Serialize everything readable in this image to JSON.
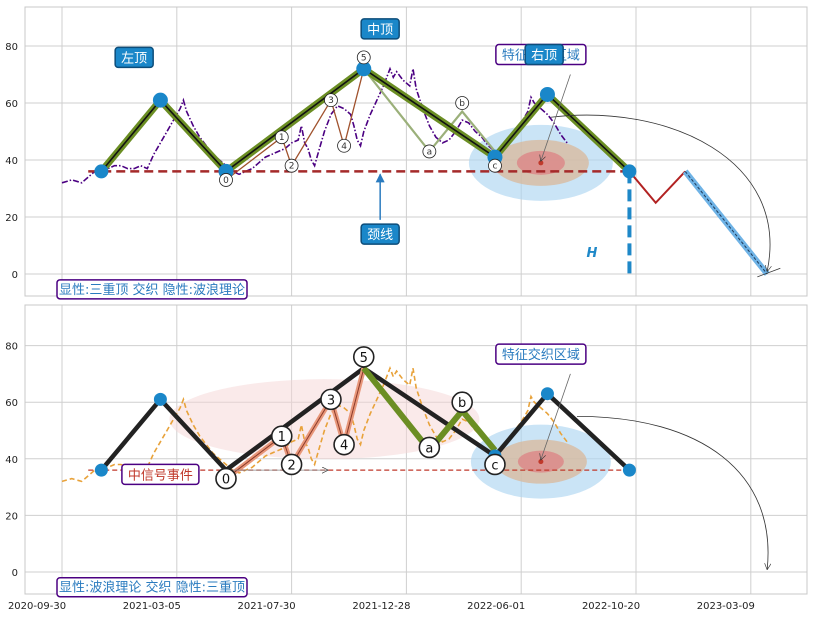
{
  "chart_data": [
    {
      "type": "line",
      "panel": "top",
      "title": "",
      "xlabel": "",
      "ylabel": "",
      "ylim": [
        -8,
        95
      ],
      "yticks": [
        0,
        20,
        40,
        60,
        80
      ],
      "grid": true,
      "series": [
        {
          "role": "price",
          "style": "dash-dot",
          "color": "#4b0082",
          "points": [
            [
              0,
              32
            ],
            [
              3,
              33
            ],
            [
              6,
              32
            ],
            [
              8,
              34
            ],
            [
              10,
              36
            ],
            [
              12,
              35
            ],
            [
              14,
              37
            ],
            [
              16,
              38
            ],
            [
              18,
              38
            ],
            [
              20,
              37
            ],
            [
              22,
              37
            ],
            [
              24,
              38
            ],
            [
              26,
              37
            ],
            [
              28,
              42
            ],
            [
              30,
              46
            ],
            [
              32,
              50
            ],
            [
              34,
              54
            ],
            [
              36,
              58
            ],
            [
              37,
              61
            ],
            [
              38,
              57
            ],
            [
              40,
              52
            ],
            [
              42,
              48
            ],
            [
              44,
              45
            ],
            [
              46,
              42
            ],
            [
              48,
              40
            ],
            [
              50,
              38
            ],
            [
              52,
              36
            ],
            [
              54,
              35
            ],
            [
              56,
              36
            ],
            [
              58,
              37
            ],
            [
              60,
              39
            ],
            [
              62,
              41
            ],
            [
              64,
              42
            ],
            [
              66,
              43
            ],
            [
              68,
              44
            ],
            [
              70,
              46
            ],
            [
              72,
              47
            ],
            [
              73,
              52
            ],
            [
              74,
              46
            ],
            [
              75,
              44
            ],
            [
              76,
              40
            ],
            [
              77,
              38
            ],
            [
              78,
              42
            ],
            [
              80,
              50
            ],
            [
              82,
              56
            ],
            [
              84,
              59
            ],
            [
              86,
              58
            ],
            [
              88,
              56
            ],
            [
              89,
              52
            ],
            [
              90,
              47
            ],
            [
              91,
              45
            ],
            [
              92,
              50
            ],
            [
              94,
              56
            ],
            [
              96,
              61
            ],
            [
              98,
              66
            ],
            [
              100,
              72
            ],
            [
              101,
              69
            ],
            [
              102,
              71
            ],
            [
              104,
              68
            ],
            [
              106,
              66
            ],
            [
              107,
              72
            ],
            [
              108,
              65
            ],
            [
              110,
              58
            ],
            [
              112,
              52
            ],
            [
              114,
              48
            ],
            [
              116,
              46
            ],
            [
              118,
              47
            ],
            [
              120,
              50
            ],
            [
              122,
              54
            ],
            [
              124,
              53
            ],
            [
              126,
              50
            ],
            [
              128,
              48
            ],
            [
              130,
              45
            ],
            [
              132,
              43
            ],
            [
              134,
              43
            ],
            [
              136,
              46
            ],
            [
              138,
              50
            ],
            [
              140,
              53
            ],
            [
              142,
              57
            ],
            [
              143,
              62
            ],
            [
              144,
              60
            ],
            [
              146,
              58
            ],
            [
              148,
              56
            ],
            [
              150,
              53
            ],
            [
              152,
              49
            ],
            [
              154,
              46
            ]
          ]
        },
        {
          "role": "triple-top-pattern",
          "color": "#6b8e23",
          "points": [
            [
              12,
              36
            ],
            [
              30,
              61
            ],
            [
              50,
              36
            ],
            [
              92,
              72
            ],
            [
              132,
              41
            ],
            [
              148,
              63
            ],
            [
              173,
              36
            ]
          ]
        },
        {
          "role": "pattern-core",
          "color": "#111111",
          "points": [
            [
              12,
              36
            ],
            [
              30,
              61
            ],
            [
              50,
              36
            ],
            [
              92,
              72
            ],
            [
              132,
              41
            ],
            [
              148,
              63
            ],
            [
              173,
              36
            ]
          ]
        },
        {
          "role": "wave",
          "color": "#a0522d",
          "points": [
            [
              50,
              33
            ],
            [
              67,
              48
            ],
            [
              70,
              38
            ],
            [
              82,
              61
            ],
            [
              86,
              45
            ],
            [
              92,
              72
            ],
            [
              112,
              43
            ],
            [
              122,
              57
            ],
            [
              132,
              43
            ]
          ]
        },
        {
          "role": "projection-1",
          "color": "#b22222",
          "points": [
            [
              173,
              36
            ],
            [
              181,
              25
            ],
            [
              190,
              36
            ]
          ]
        },
        {
          "role": "projection-2",
          "color": "#1e90ff",
          "points": [
            [
              190,
              36
            ],
            [
              215,
              0
            ]
          ]
        }
      ],
      "neckline": 36,
      "target_drop": "H",
      "peaks": [
        {
          "label": "左顶",
          "x": 30,
          "y": 61
        },
        {
          "label": "中顶",
          "x": 92,
          "y": 72
        },
        {
          "label": "右顶",
          "x": 148,
          "y": 63
        }
      ],
      "wave_labels": [
        {
          "label": "0",
          "x": 50,
          "y": 33
        },
        {
          "label": "1",
          "x": 67,
          "y": 48
        },
        {
          "label": "2",
          "x": 70,
          "y": 38
        },
        {
          "label": "3",
          "x": 82,
          "y": 61
        },
        {
          "label": "4",
          "x": 86,
          "y": 45
        },
        {
          "label": "5",
          "x": 92,
          "y": 76
        },
        {
          "label": "a",
          "x": 112,
          "y": 43
        },
        {
          "label": "b",
          "x": 122,
          "y": 60
        },
        {
          "label": "c",
          "x": 132,
          "y": 38
        }
      ],
      "annotations": {
        "left_top": "左顶",
        "mid_top": "中顶",
        "right_top": "右顶",
        "zone": "特征交织区域",
        "neckline": "颈线",
        "target": "H",
        "legend": "显性:三重顶 交织 隐性:波浪理论"
      }
    },
    {
      "type": "line",
      "panel": "bottom",
      "title": "",
      "xlabel": "",
      "ylabel": "",
      "ylim": [
        -8,
        95
      ],
      "yticks": [
        0,
        20,
        40,
        60,
        80
      ],
      "grid": true,
      "x_tick_labels": [
        "2020-09-30",
        "2021-03-05",
        "2021-07-30",
        "2021-12-28",
        "2022-06-01",
        "2022-10-20",
        "2023-03-09"
      ],
      "series": [
        {
          "role": "price",
          "style": "dashed",
          "color": "#e8a23a",
          "points": [
            [
              0,
              32
            ],
            [
              3,
              33
            ],
            [
              6,
              32
            ],
            [
              8,
              34
            ],
            [
              10,
              36
            ],
            [
              12,
              35
            ],
            [
              14,
              37
            ],
            [
              16,
              38
            ],
            [
              18,
              38
            ],
            [
              20,
              37
            ],
            [
              22,
              37
            ],
            [
              24,
              38
            ],
            [
              26,
              37
            ],
            [
              28,
              42
            ],
            [
              30,
              46
            ],
            [
              32,
              50
            ],
            [
              34,
              54
            ],
            [
              36,
              58
            ],
            [
              37,
              61
            ],
            [
              38,
              57
            ],
            [
              40,
              52
            ],
            [
              42,
              48
            ],
            [
              44,
              45
            ],
            [
              46,
              42
            ],
            [
              48,
              40
            ],
            [
              50,
              38
            ],
            [
              52,
              36
            ],
            [
              54,
              35
            ],
            [
              56,
              36
            ],
            [
              58,
              37
            ],
            [
              60,
              39
            ],
            [
              62,
              41
            ],
            [
              64,
              42
            ],
            [
              66,
              43
            ],
            [
              68,
              44
            ],
            [
              70,
              46
            ],
            [
              72,
              47
            ],
            [
              73,
              52
            ],
            [
              74,
              46
            ],
            [
              75,
              44
            ],
            [
              76,
              40
            ],
            [
              77,
              38
            ],
            [
              78,
              42
            ],
            [
              80,
              50
            ],
            [
              82,
              56
            ],
            [
              84,
              59
            ],
            [
              86,
              58
            ],
            [
              88,
              56
            ],
            [
              89,
              52
            ],
            [
              90,
              47
            ],
            [
              91,
              45
            ],
            [
              92,
              50
            ],
            [
              94,
              56
            ],
            [
              96,
              61
            ],
            [
              98,
              66
            ],
            [
              100,
              72
            ],
            [
              101,
              69
            ],
            [
              102,
              71
            ],
            [
              104,
              68
            ],
            [
              106,
              66
            ],
            [
              107,
              72
            ],
            [
              108,
              65
            ],
            [
              110,
              58
            ],
            [
              112,
              52
            ],
            [
              114,
              48
            ],
            [
              116,
              46
            ],
            [
              118,
              47
            ],
            [
              120,
              50
            ],
            [
              122,
              54
            ],
            [
              124,
              53
            ],
            [
              126,
              50
            ],
            [
              128,
              48
            ],
            [
              130,
              45
            ],
            [
              132,
              43
            ],
            [
              134,
              43
            ],
            [
              136,
              46
            ],
            [
              138,
              50
            ],
            [
              140,
              53
            ],
            [
              142,
              57
            ],
            [
              143,
              62
            ],
            [
              144,
              60
            ],
            [
              146,
              58
            ],
            [
              148,
              56
            ],
            [
              150,
              53
            ],
            [
              152,
              49
            ],
            [
              154,
              46
            ]
          ]
        },
        {
          "role": "triple-top",
          "color": "#222222",
          "points": [
            [
              12,
              36
            ],
            [
              30,
              61
            ],
            [
              50,
              36
            ],
            [
              92,
              72
            ],
            [
              132,
              41
            ],
            [
              148,
              63
            ],
            [
              173,
              36
            ]
          ]
        },
        {
          "role": "wave-impulse",
          "color": "#e8977a",
          "points": [
            [
              50,
              33
            ],
            [
              67,
              48
            ],
            [
              70,
              38
            ],
            [
              82,
              61
            ],
            [
              86,
              45
            ],
            [
              92,
              72
            ]
          ]
        },
        {
          "role": "wave-correction",
          "color": "#6b8e23",
          "points": [
            [
              92,
              72
            ],
            [
              112,
              43
            ],
            [
              122,
              57
            ],
            [
              132,
              43
            ]
          ]
        }
      ],
      "neckline": 36,
      "wave_labels": [
        {
          "label": "0",
          "x": 50,
          "y": 33
        },
        {
          "label": "1",
          "x": 67,
          "y": 48
        },
        {
          "label": "2",
          "x": 70,
          "y": 38
        },
        {
          "label": "3",
          "x": 82,
          "y": 61
        },
        {
          "label": "4",
          "x": 86,
          "y": 45
        },
        {
          "label": "5",
          "x": 92,
          "y": 76
        },
        {
          "label": "a",
          "x": 112,
          "y": 44
        },
        {
          "label": "b",
          "x": 122,
          "y": 60
        },
        {
          "label": "c",
          "x": 132,
          "y": 38
        }
      ],
      "annotations": {
        "zone": "特征交织区域",
        "event": "中信号事件",
        "legend": "显性:波浪理论 交织 隐性:三重顶"
      }
    }
  ]
}
